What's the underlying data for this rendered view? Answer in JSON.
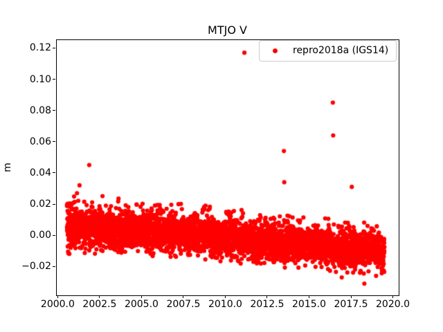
{
  "window": {
    "background": "#ffffff"
  },
  "colors": {
    "marker": "#ff0000",
    "spine": "#000000",
    "text": "#000000",
    "legend_border": "#cccccc",
    "background": "#ffffff"
  },
  "chart_data": {
    "type": "scatter",
    "title": "MTJO V",
    "xlabel": "",
    "ylabel": "m",
    "xlim": [
      1999.9,
      2020.35
    ],
    "ylim": [
      -0.0385,
      0.1255
    ],
    "xticks": [
      2000.0,
      2002.5,
      2005.0,
      2007.5,
      2010.0,
      2012.5,
      2015.0,
      2017.5,
      2020.0
    ],
    "xtick_labels": [
      "2000.0",
      "2002.5",
      "2005.0",
      "2007.5",
      "2010.0",
      "2012.5",
      "2015.0",
      "2017.5",
      "2020.0"
    ],
    "yticks": [
      -0.02,
      0.0,
      0.02,
      0.04,
      0.06,
      0.08,
      0.1,
      0.12
    ],
    "ytick_labels": [
      "−0.02",
      "0.00",
      "0.02",
      "0.04",
      "0.06",
      "0.08",
      "0.10",
      "0.12"
    ],
    "grid": false,
    "legend": {
      "entries": [
        "repro2018a (IGS14)"
      ],
      "position": "upper right",
      "marker": "red-dot"
    },
    "series": [
      {
        "name": "repro2018a (IGS14)",
        "color": "#ff0000",
        "marker": "dot",
        "marker_radius_px": 3.1,
        "x_start": 2000.55,
        "x_end": 2019.5,
        "n_points": 4600,
        "band_trend": [
          [
            2000.55,
            0.004
          ],
          [
            2003.0,
            0.004
          ],
          [
            2006.0,
            0.002
          ],
          [
            2009.0,
            0.0
          ],
          [
            2012.0,
            -0.004
          ],
          [
            2015.0,
            -0.006
          ],
          [
            2017.0,
            -0.008
          ],
          [
            2019.5,
            -0.01
          ]
        ],
        "band_sigma": 0.0055,
        "band_sigma_early": 0.0075,
        "outliers": [
          [
            2001.15,
            0.027
          ],
          [
            2001.3,
            0.032
          ],
          [
            2001.88,
            0.045
          ],
          [
            2011.14,
            0.117
          ],
          [
            2013.5,
            0.054
          ],
          [
            2013.52,
            0.034
          ],
          [
            2016.42,
            0.085
          ],
          [
            2016.44,
            0.064
          ],
          [
            2017.55,
            0.031
          ],
          [
            2016.95,
            -0.027
          ],
          [
            2018.3,
            -0.031
          ],
          [
            2019.0,
            -0.026
          ]
        ]
      }
    ]
  }
}
